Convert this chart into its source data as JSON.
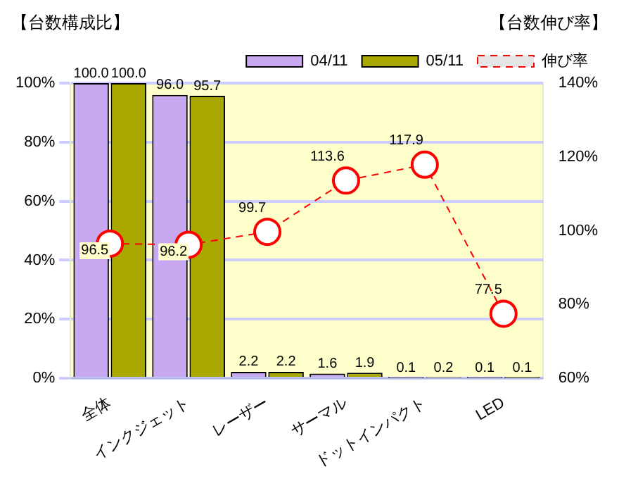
{
  "chart_data": {
    "type": "bar",
    "ylabel": "【台数構成比】",
    "y2label": "【台数伸び率】",
    "categories": [
      "全体",
      "インクジェット",
      "レーザー",
      "サーマル",
      "ドットインパクト",
      "LED"
    ],
    "series": [
      {
        "name": "04/11",
        "color": "#c8a8f0",
        "values": [
          100.0,
          96.0,
          2.2,
          1.6,
          0.1,
          0.1
        ],
        "value_labels": [
          "100.0",
          "96.0",
          "2.2",
          "1.6",
          "0.1",
          "0.1"
        ]
      },
      {
        "name": "05/11",
        "color": "#a8a800",
        "values": [
          100.0,
          95.7,
          2.2,
          1.9,
          0.2,
          0.1
        ],
        "value_labels": [
          "100.0",
          "95.7",
          "2.2",
          "1.9",
          "0.2",
          "0.1"
        ]
      },
      {
        "name": "伸び率",
        "type": "line",
        "axis": "y2",
        "color": "#ff0000",
        "line_style": "dashed",
        "marker": "circle",
        "values": [
          96.5,
          96.2,
          99.7,
          113.6,
          117.9,
          77.5
        ],
        "value_labels": [
          "96.5",
          "96.2",
          "99.7",
          "113.6",
          "117.9",
          "77.5"
        ]
      }
    ],
    "ylim": [
      0,
      100
    ],
    "yticks": [
      {
        "value": 0,
        "label": "0%"
      },
      {
        "value": 20,
        "label": "20%"
      },
      {
        "value": 40,
        "label": "40%"
      },
      {
        "value": 60,
        "label": "60%"
      },
      {
        "value": 80,
        "label": "80%"
      },
      {
        "value": 100,
        "label": "100%"
      }
    ],
    "y2lim": [
      60,
      140
    ],
    "y2ticks": [
      {
        "value": 60,
        "label": "60%"
      },
      {
        "value": 80,
        "label": "80%"
      },
      {
        "value": 100,
        "label": "100%"
      },
      {
        "value": 120,
        "label": "120%"
      },
      {
        "value": 140,
        "label": "140%"
      }
    ],
    "grid": "y",
    "legend": "top right"
  }
}
